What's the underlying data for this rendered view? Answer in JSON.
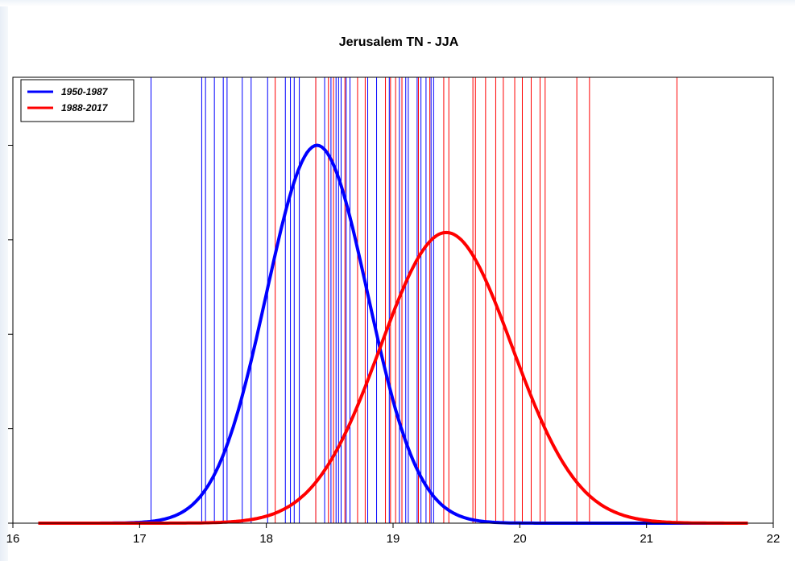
{
  "chart_data": {
    "type": "line",
    "title": "Jerusalem TN - JJA",
    "xlabel": "",
    "ylabel": "",
    "xlim": [
      16,
      22
    ],
    "ylim": [
      0,
      1.18
    ],
    "x_ticks": [
      16,
      17,
      18,
      19,
      20,
      21,
      22
    ],
    "y_ticks": [
      0,
      0.25,
      0.5,
      0.75,
      1.0
    ],
    "y_tick_labels_visible": false,
    "grid": false,
    "legend_position": "top-left",
    "series": [
      {
        "name": "1950-1987",
        "color": "#0000ff",
        "kind": "normal_density",
        "mean": 18.4,
        "sd": 0.4,
        "x_range": [
          16.2,
          21.8
        ],
        "annual_values": [
          17.09,
          17.49,
          17.52,
          17.59,
          17.66,
          17.69,
          17.81,
          17.88,
          18.01,
          18.15,
          18.19,
          18.22,
          18.26,
          18.39,
          18.46,
          18.51,
          18.55,
          18.57,
          18.59,
          18.63,
          18.66,
          18.8,
          18.87,
          18.97,
          19.05,
          19.1,
          19.12,
          19.19,
          19.22,
          19.26,
          19.3,
          19.32
        ]
      },
      {
        "name": "1988-2017",
        "color": "#ff0000",
        "kind": "normal_density",
        "mean": 19.42,
        "sd": 0.52,
        "x_range": [
          16.2,
          21.8
        ],
        "annual_values": [
          18.07,
          18.39,
          18.49,
          18.53,
          18.62,
          18.72,
          18.78,
          18.94,
          18.98,
          19.02,
          19.07,
          19.2,
          19.29,
          19.4,
          19.44,
          19.63,
          19.65,
          19.73,
          19.81,
          19.87,
          19.96,
          20.02,
          20.09,
          20.16,
          20.2,
          20.45,
          20.55,
          21.24
        ]
      }
    ]
  }
}
